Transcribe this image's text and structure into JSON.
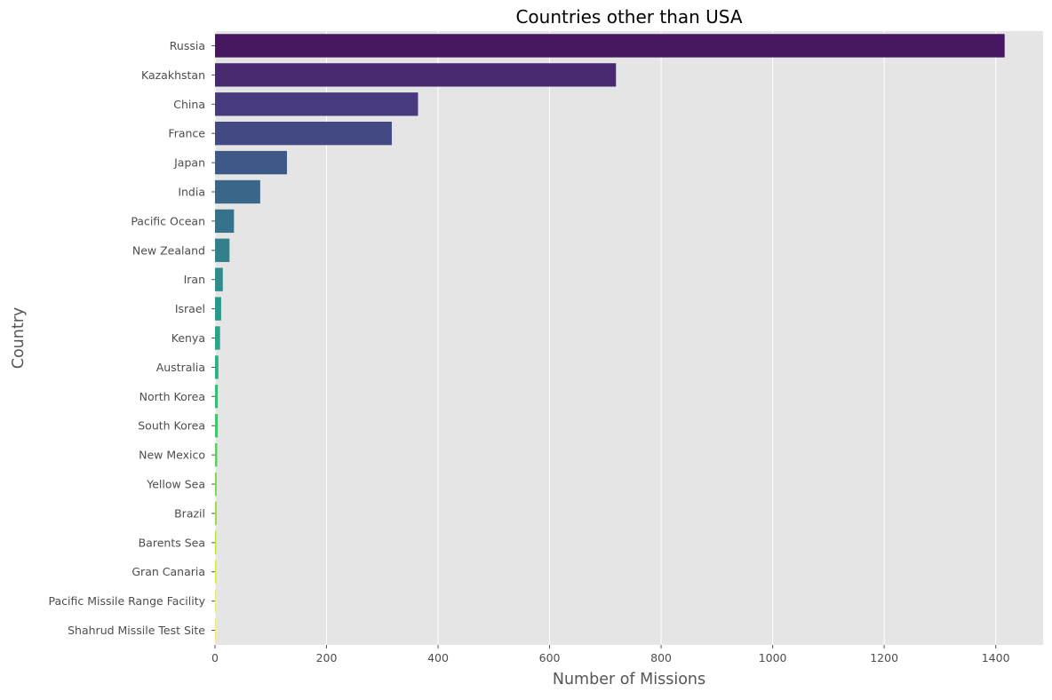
{
  "chart_data": {
    "type": "bar",
    "orientation": "horizontal",
    "title": "Countries other than USA",
    "xlabel": "Number of Missions",
    "ylabel": "Country",
    "xlim": [
      0,
      1485
    ],
    "xticks": [
      0,
      200,
      400,
      600,
      800,
      1000,
      1200,
      1400
    ],
    "grid": true,
    "categories": [
      "Russia",
      "Kazakhstan",
      "China",
      "France",
      "Japan",
      "India",
      "Pacific Ocean",
      "New Zealand",
      "Iran",
      "Israel",
      "Kenya",
      "Australia",
      "North Korea",
      "South Korea",
      "New Mexico",
      "Yellow Sea",
      "Brazil",
      "Barents Sea",
      "Gran Canaria",
      "Pacific Missile Range Facility",
      "Shahrud Missile Test Site"
    ],
    "values": [
      1416,
      719,
      364,
      317,
      129,
      81,
      34,
      26,
      14,
      11,
      9,
      6,
      5,
      5,
      4,
      3,
      3,
      2,
      2,
      1,
      1
    ],
    "colors": [
      "#46175f",
      "#472a70",
      "#483a7c",
      "#434a83",
      "#3e5887",
      "#3a668a",
      "#36738b",
      "#33808c",
      "#2f8c8b",
      "#2c988a",
      "#2aa487",
      "#2db082",
      "#36bb7a",
      "#46c56e",
      "#5ecf60",
      "#79d74f",
      "#96de3f",
      "#b5e42f",
      "#d3e82a",
      "#ebea2b",
      "#fde725"
    ],
    "background": "#e5e5e5",
    "grid_color": "#ffffff"
  }
}
